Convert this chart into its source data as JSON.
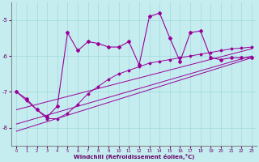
{
  "background_color": "#c5edf0",
  "grid_color": "#a0d8db",
  "line_color": "#990099",
  "marker_color": "#990099",
  "xlim": [
    -0.5,
    23.5
  ],
  "ylim": [
    -8.5,
    -4.5
  ],
  "yticks": [
    -8,
    -7,
    -6,
    -5
  ],
  "xticks": [
    0,
    1,
    2,
    3,
    4,
    5,
    6,
    7,
    8,
    9,
    10,
    11,
    12,
    13,
    14,
    15,
    16,
    17,
    18,
    19,
    20,
    21,
    22,
    23
  ],
  "xlabel": "Windchill (Refroidissement éolien,°C)",
  "series1_x": [
    0,
    1,
    2,
    3,
    4,
    5,
    6,
    7,
    8,
    9,
    10,
    11,
    12,
    13,
    14,
    15,
    16,
    17,
    18,
    19,
    20,
    21,
    22,
    23
  ],
  "series1_y": [
    -7.0,
    -7.2,
    -7.5,
    -7.7,
    -7.4,
    -5.35,
    -5.85,
    -5.6,
    -5.65,
    -5.75,
    -5.75,
    -5.6,
    -6.25,
    -4.9,
    -4.8,
    -5.5,
    -6.15,
    -5.35,
    -5.3,
    -6.05,
    -6.1,
    -6.05,
    -6.05,
    -6.05
  ],
  "series2_x": [
    0,
    1,
    2,
    3,
    4,
    5,
    6,
    7,
    8,
    9,
    10,
    11,
    12,
    13,
    14,
    15,
    16,
    17,
    18,
    19,
    20,
    21,
    22,
    23
  ],
  "series2_y": [
    -7.0,
    -7.25,
    -7.5,
    -7.75,
    -7.75,
    -7.6,
    -7.35,
    -7.05,
    -6.85,
    -6.65,
    -6.5,
    -6.4,
    -6.3,
    -6.2,
    -6.15,
    -6.1,
    -6.05,
    -6.0,
    -5.95,
    -5.9,
    -5.85,
    -5.8,
    -5.78,
    -5.75
  ],
  "series3_x": [
    0,
    23
  ],
  "series3_y": [
    -7.5,
    -5.8
  ],
  "series4_x": [
    0,
    23
  ],
  "series4_y": [
    -7.9,
    -6.0
  ],
  "series5_x": [
    0,
    23
  ],
  "series5_y": [
    -8.1,
    -6.05
  ]
}
